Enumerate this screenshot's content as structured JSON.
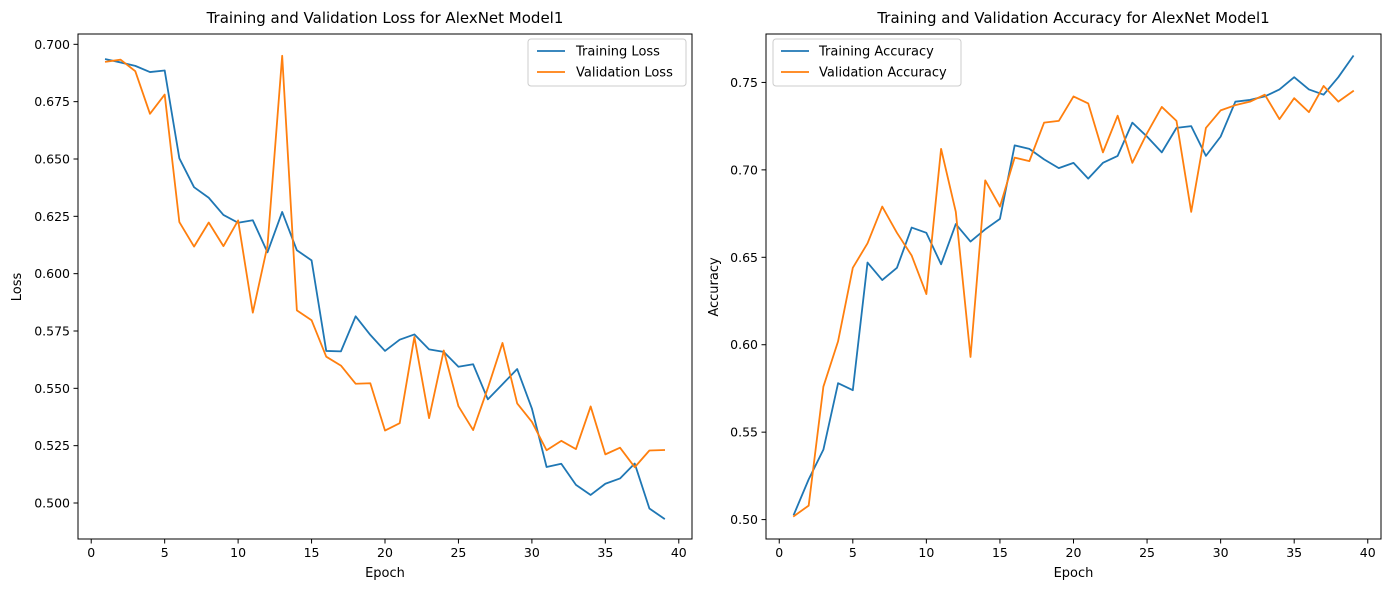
{
  "chart_data": [
    {
      "type": "line",
      "title": "Training and Validation Loss for AlexNet Model1",
      "xlabel": "Epoch",
      "ylabel": "Loss",
      "xlim": [
        -0.9,
        40.9
      ],
      "ylim": [
        0.4843,
        0.7045
      ],
      "xticks": [
        0,
        5,
        10,
        15,
        20,
        25,
        30,
        35,
        40
      ],
      "yticks": [
        0.5,
        0.525,
        0.55,
        0.575,
        0.6,
        0.625,
        0.65,
        0.675,
        0.7
      ],
      "ytick_labels": [
        "0.500",
        "0.525",
        "0.550",
        "0.575",
        "0.600",
        "0.625",
        "0.650",
        "0.675",
        "0.700"
      ],
      "legend_position": "upper right",
      "x": [
        1,
        2,
        3,
        4,
        5,
        6,
        7,
        8,
        9,
        10,
        11,
        12,
        13,
        14,
        15,
        16,
        17,
        18,
        19,
        20,
        21,
        22,
        23,
        24,
        25,
        26,
        27,
        28,
        29,
        30,
        31,
        32,
        33,
        34,
        35,
        36,
        37,
        38,
        39
      ],
      "series": [
        {
          "name": "Training Loss",
          "color": "#1f77b4",
          "values": [
            0.6935,
            0.6921,
            0.6906,
            0.6879,
            0.6886,
            0.6503,
            0.6377,
            0.6331,
            0.6256,
            0.6222,
            0.6233,
            0.6093,
            0.6269,
            0.6102,
            0.6058,
            0.5663,
            0.5661,
            0.5814,
            0.5733,
            0.5663,
            0.5712,
            0.5735,
            0.567,
            0.5659,
            0.5594,
            0.5605,
            0.5452,
            0.5518,
            0.5584,
            0.5412,
            0.5157,
            0.5171,
            0.5079,
            0.5035,
            0.5084,
            0.5107,
            0.5172,
            0.4976,
            0.4932
          ]
        },
        {
          "name": "Validation Loss",
          "color": "#ff7f0e",
          "values": [
            0.6924,
            0.6933,
            0.6883,
            0.6697,
            0.6781,
            0.6225,
            0.6118,
            0.6223,
            0.612,
            0.6232,
            0.583,
            0.6122,
            0.695,
            0.584,
            0.5797,
            0.5638,
            0.5599,
            0.552,
            0.5522,
            0.5316,
            0.5348,
            0.5724,
            0.537,
            0.5665,
            0.5422,
            0.5318,
            0.5501,
            0.5698,
            0.5434,
            0.5354,
            0.523,
            0.5271,
            0.5235,
            0.5421,
            0.5212,
            0.5241,
            0.5156,
            0.5229,
            0.5231
          ]
        }
      ]
    },
    {
      "type": "line",
      "title": "Training and Validation Accuracy for AlexNet Model1",
      "xlabel": "Epoch",
      "ylabel": "Accuracy",
      "xlim": [
        -0.9,
        40.9
      ],
      "ylim": [
        0.4889,
        0.7777
      ],
      "xticks": [
        0,
        5,
        10,
        15,
        20,
        25,
        30,
        35,
        40
      ],
      "yticks": [
        0.5,
        0.55,
        0.6,
        0.65,
        0.7,
        0.75
      ],
      "ytick_labels": [
        "0.50",
        "0.55",
        "0.60",
        "0.65",
        "0.70",
        "0.75"
      ],
      "legend_position": "upper left",
      "x": [
        1,
        2,
        3,
        4,
        5,
        6,
        7,
        8,
        9,
        10,
        11,
        12,
        13,
        14,
        15,
        16,
        17,
        18,
        19,
        20,
        21,
        22,
        23,
        24,
        25,
        26,
        27,
        28,
        29,
        30,
        31,
        32,
        33,
        34,
        35,
        36,
        37,
        38,
        39
      ],
      "series": [
        {
          "name": "Training Accuracy",
          "color": "#1f77b4",
          "values": [
            0.503,
            0.523,
            0.54,
            0.578,
            0.574,
            0.647,
            0.637,
            0.644,
            0.667,
            0.664,
            0.646,
            0.669,
            0.659,
            0.666,
            0.672,
            0.714,
            0.712,
            0.706,
            0.701,
            0.704,
            0.695,
            0.704,
            0.708,
            0.727,
            0.719,
            0.71,
            0.724,
            0.725,
            0.708,
            0.719,
            0.739,
            0.74,
            0.742,
            0.746,
            0.753,
            0.746,
            0.743,
            0.753,
            0.765
          ]
        },
        {
          "name": "Validation Accuracy",
          "color": "#ff7f0e",
          "values": [
            0.502,
            0.508,
            0.576,
            0.602,
            0.644,
            0.658,
            0.679,
            0.664,
            0.651,
            0.629,
            0.712,
            0.676,
            0.593,
            0.694,
            0.679,
            0.707,
            0.705,
            0.727,
            0.728,
            0.742,
            0.738,
            0.71,
            0.731,
            0.704,
            0.721,
            0.736,
            0.728,
            0.676,
            0.724,
            0.734,
            0.737,
            0.739,
            0.743,
            0.729,
            0.741,
            0.733,
            0.748,
            0.739,
            0.745
          ]
        }
      ]
    }
  ]
}
